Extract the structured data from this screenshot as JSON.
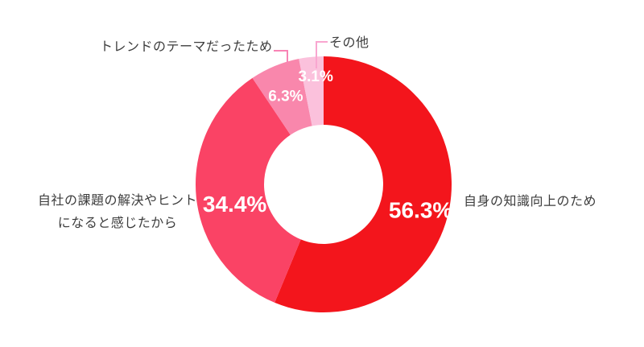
{
  "page": {
    "background": "#ffffff"
  },
  "chart_data": {
    "type": "pie",
    "subtype": "donut",
    "title": "",
    "legend": "none",
    "direction": "clockwise",
    "start_angle_deg": 0,
    "inner_radius_ratio": 0.465,
    "value_label_color": "#ffffff",
    "category_label_color": "#3d3d3d",
    "slices": [
      {
        "label": "自身の知識向上のため",
        "value": 56.3,
        "pct_label": "56.3%",
        "color": "#F3151C"
      },
      {
        "label": "自社の課題の解決やヒントになると感じたから",
        "label_lines": [
          "自社の課題の解決やヒント",
          "になると感じたから"
        ],
        "value": 34.4,
        "pct_label": "34.4%",
        "color": "#FA4365"
      },
      {
        "label": "トレンドのテーマだったため",
        "value": 6.3,
        "pct_label": "6.3%",
        "color": "#F987AC",
        "leader_color": "#F884B5"
      },
      {
        "label": "その他",
        "value": 3.1,
        "pct_label": "3.1%",
        "color": "#FBC1DC",
        "leader_color": "#F9A6D0"
      }
    ]
  }
}
